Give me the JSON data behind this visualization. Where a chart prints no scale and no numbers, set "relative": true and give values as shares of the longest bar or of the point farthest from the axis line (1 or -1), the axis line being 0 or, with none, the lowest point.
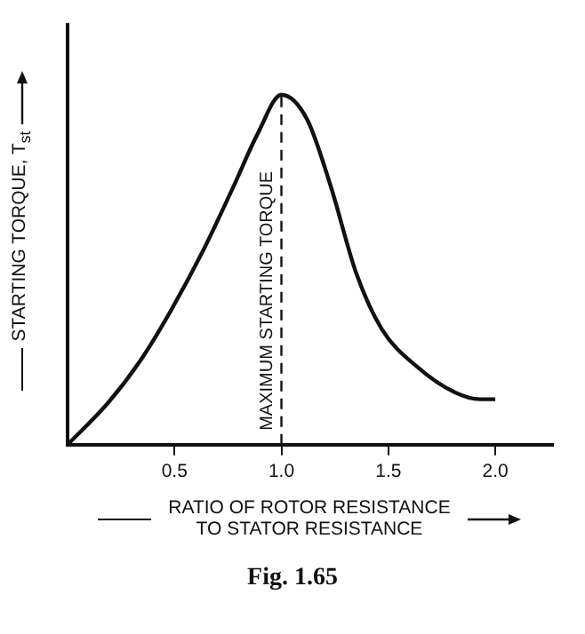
{
  "chart_data": {
    "type": "line",
    "relative": true,
    "xlabel": "RATIO OF ROTOR RESISTANCE TO STATOR RESISTANCE",
    "ylabel": "STARTING TORQUE, T$_{st}$",
    "x": [
      0,
      0.19,
      0.34,
      0.48,
      0.63,
      0.77,
      0.89,
      1.0,
      1.12,
      1.23,
      1.35,
      1.47,
      1.64,
      1.81,
      1.93,
      2.0
    ],
    "series": [
      {
        "color": "#111111",
        "values": [
          0,
          0.12,
          0.24,
          0.38,
          0.55,
          0.73,
          0.89,
          1,
          0.93,
          0.74,
          0.49,
          0.33,
          0.22,
          0.15,
          0.13,
          0.13
        ]
      }
    ],
    "xlim": [
      0,
      2.27
    ],
    "xticks": [
      {
        "value": 0.5,
        "label": "0.5"
      },
      {
        "value": 1,
        "label": "1.0"
      },
      {
        "value": 1.5,
        "label": "1.5"
      },
      {
        "value": 2,
        "label": "2.0"
      }
    ],
    "ref_lines": [
      {
        "axis": "x",
        "value": 1,
        "label": "MAXIMUM STARTING TORQUE",
        "line_style": "dashed",
        "color": "#111111"
      }
    ],
    "grid": false,
    "legend": false,
    "marker": "none",
    "line_style": "solid",
    "annotations": [
      "Fig. 1.65"
    ]
  }
}
